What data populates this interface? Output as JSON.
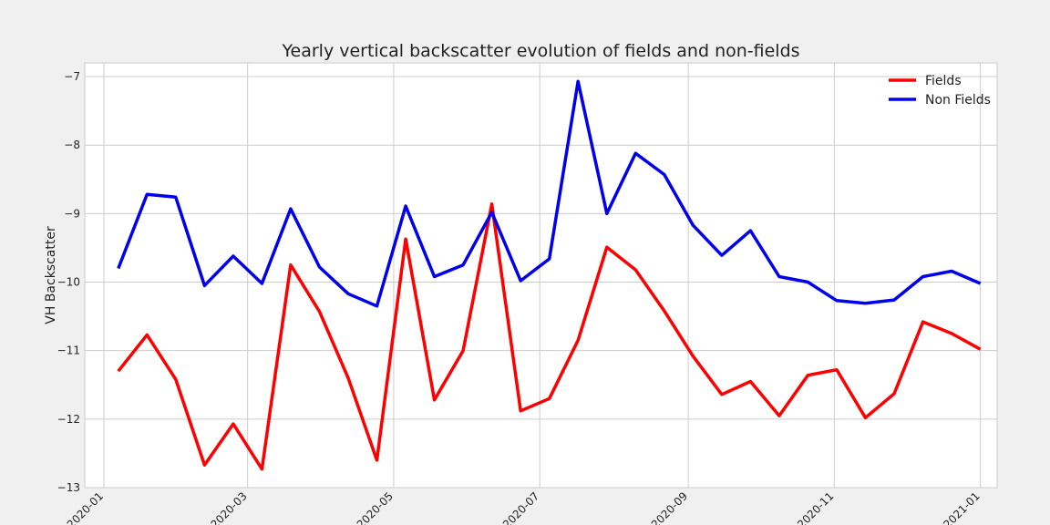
{
  "chart_data": {
    "type": "line",
    "title": "Yearly vertical backscatter evolution of fields and non-fields",
    "xlabel": "",
    "ylabel": "VH Backscatter",
    "ylim": [
      -13,
      -6.8
    ],
    "yticks": [
      -13,
      -12,
      -11,
      -10,
      -9,
      -8,
      -7
    ],
    "ytick_labels": [
      "−13",
      "−12",
      "−11",
      "−10",
      "−9",
      "−8",
      "−7"
    ],
    "xlim": [
      "2019-12-24",
      "2021-01-08"
    ],
    "xticks": [
      "2020-01-01",
      "2020-03-01",
      "2020-05-01",
      "2020-07-01",
      "2020-09-01",
      "2020-11-01",
      "2021-01-01"
    ],
    "xtick_labels": [
      "2020-01",
      "2020-03",
      "2020-05",
      "2020-07",
      "2020-09",
      "2020-11",
      "2021-01"
    ],
    "grid": true,
    "legend_position": "top-right",
    "x": [
      "2020-01-07",
      "2020-01-19",
      "2020-01-31",
      "2020-02-12",
      "2020-02-24",
      "2020-03-07",
      "2020-03-19",
      "2020-03-31",
      "2020-04-12",
      "2020-04-24",
      "2020-05-06",
      "2020-05-18",
      "2020-05-30",
      "2020-06-11",
      "2020-06-23",
      "2020-07-05",
      "2020-07-17",
      "2020-07-29",
      "2020-08-10",
      "2020-08-22",
      "2020-09-03",
      "2020-09-15",
      "2020-09-27",
      "2020-10-09",
      "2020-10-21",
      "2020-11-02",
      "2020-11-14",
      "2020-11-26",
      "2020-12-08",
      "2020-12-20",
      "2021-01-01"
    ],
    "series": [
      {
        "name": "Fields",
        "color": "#ff0000",
        "values": [
          -11.3,
          -10.77,
          -11.42,
          -12.67,
          -12.07,
          -12.73,
          -9.75,
          -10.43,
          -11.4,
          -12.6,
          -9.37,
          -11.72,
          -11.0,
          -8.86,
          -11.88,
          -11.7,
          -10.85,
          -9.49,
          -9.82,
          -10.42,
          -11.08,
          -11.64,
          -11.45,
          -11.95,
          -11.36,
          -11.28,
          -11.98,
          -11.63,
          -10.58,
          -10.75,
          -10.98
        ]
      },
      {
        "name": "Non Fields",
        "color": "#0000ee",
        "values": [
          -9.8,
          -8.72,
          -8.76,
          -10.05,
          -9.62,
          -10.02,
          -8.93,
          -9.78,
          -10.17,
          -10.35,
          -8.89,
          -9.92,
          -9.75,
          -8.98,
          -9.98,
          -9.66,
          -7.07,
          -9.0,
          -8.12,
          -8.43,
          -9.17,
          -9.61,
          -9.25,
          -9.92,
          -10.0,
          -10.27,
          -10.31,
          -10.26,
          -9.92,
          -9.84,
          -10.02
        ]
      }
    ]
  }
}
